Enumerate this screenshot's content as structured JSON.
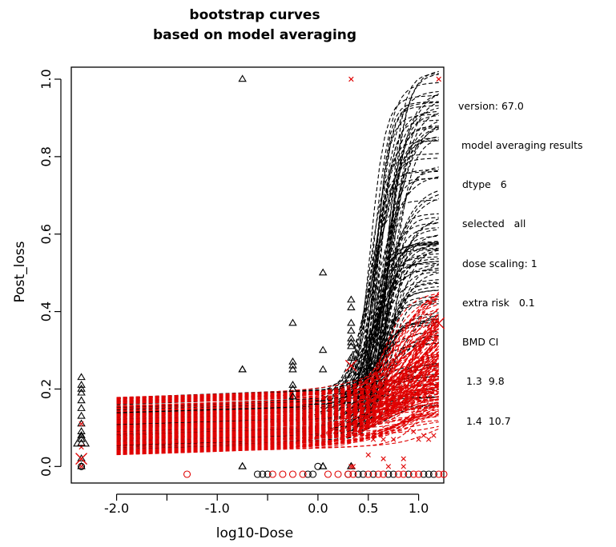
{
  "chart_data": {
    "type": "line",
    "title": [
      "bootstrap curves",
      "based on model averaging"
    ],
    "xlabel": "log10-Dose",
    "ylabel": "Post_loss",
    "xlim": [
      -2.45,
      1.25
    ],
    "ylim": [
      -0.02,
      1.0
    ],
    "x_ticks": [
      -2.0,
      -1.5,
      -1.0,
      -0.5,
      0.0,
      0.5,
      1.0
    ],
    "x_tick_labels": [
      "-2.0",
      "",
      "-1.0",
      "",
      "0.0",
      "0.5",
      "1.0"
    ],
    "y_ticks": [
      0.0,
      0.2,
      0.4,
      0.6,
      0.8,
      1.0
    ],
    "y_tick_labels": [
      "0.0",
      "0.2",
      "0.4",
      "0.6",
      "0.8",
      "1.0"
    ],
    "grid": false,
    "series": [
      {
        "style": "black dashed",
        "color": "#000000",
        "description_curves": "bootstrap curves, steep rise after x=0.3",
        "curve_x_range": [
          -2.0,
          1.2
        ],
        "base_range": [
          0.04,
          0.18
        ],
        "top_range": [
          0.12,
          1.0
        ],
        "rise_start_range": [
          0.25,
          0.5
        ]
      },
      {
        "style": "red dashed",
        "color": "#e00000",
        "curve_x_range": [
          -2.0,
          1.2
        ],
        "base_range": [
          0.03,
          0.18
        ],
        "top_range": [
          0.08,
          0.48
        ]
      }
    ],
    "points_black_triangles": {
      "color": "#000000",
      "x": [
        -2.35,
        -2.35,
        -2.35,
        -2.35,
        -2.35,
        -2.35,
        -2.35,
        -2.35,
        -2.35,
        -2.35,
        -2.35,
        -2.35,
        -2.35,
        -2.35,
        -0.75,
        -0.75,
        -0.75,
        -0.75,
        -0.75,
        -0.25,
        -0.25,
        -0.25,
        -0.25,
        -0.25,
        -0.25,
        -0.25,
        0.05,
        0.05,
        0.05,
        0.05,
        0.05,
        0.33,
        0.33,
        0.33,
        0.33,
        0.33,
        0.33,
        0.33,
        0.33,
        0.33,
        0.33
      ],
      "y": [
        0.23,
        0.21,
        0.2,
        0.19,
        0.17,
        0.15,
        0.13,
        0.11,
        0.09,
        0.08,
        0.07,
        0.06,
        0.02,
        0.0,
        1.0,
        0.25,
        0.25,
        0.0,
        0.0,
        0.37,
        0.27,
        0.26,
        0.25,
        0.21,
        0.2,
        0.18,
        0.5,
        0.3,
        0.25,
        0.0,
        0.0,
        0.43,
        0.41,
        0.37,
        0.35,
        0.33,
        0.32,
        0.31,
        0.28,
        0.0,
        0.0
      ]
    },
    "points_red_x": {
      "color": "#e00000",
      "x": [
        -2.35,
        -2.35,
        -2.35,
        0.33,
        0.33,
        0.55,
        0.55,
        0.65,
        0.7,
        0.75,
        0.85,
        0.95,
        1.0,
        1.05,
        1.1,
        1.15,
        1.2,
        0.35,
        0.5,
        0.65,
        0.85
      ],
      "y": [
        0.11,
        0.05,
        0.0,
        1.0,
        0.0,
        0.07,
        0.08,
        0.07,
        0.0,
        0.07,
        0.0,
        0.09,
        0.07,
        0.08,
        0.07,
        0.08,
        1.0,
        0.0,
        0.03,
        0.02,
        0.02
      ]
    },
    "points_black_circles": {
      "color": "#000000",
      "x": [
        -2.35,
        -0.6,
        -0.55,
        -0.5,
        -0.1,
        -0.05,
        0.0,
        0.3,
        0.4,
        0.45,
        0.55,
        0.7,
        0.75,
        0.9,
        1.05,
        1.1,
        1.15
      ],
      "y": [
        0.0,
        -0.02,
        -0.02,
        -0.02,
        -0.02,
        -0.02,
        0.0,
        -0.02,
        -0.02,
        -0.02,
        -0.02,
        -0.02,
        -0.02,
        -0.02,
        -0.02,
        -0.02,
        -0.02
      ]
    },
    "points_red_circles": {
      "color": "#e00000",
      "x": [
        -1.3,
        -0.45,
        -0.35,
        -0.25,
        -0.15,
        0.1,
        0.2,
        0.3,
        0.35,
        0.5,
        0.6,
        0.65,
        0.8,
        0.85,
        0.95,
        1.0,
        1.2,
        1.25
      ],
      "y": [
        -0.02,
        -0.02,
        -0.02,
        -0.02,
        -0.02,
        -0.02,
        -0.02,
        -0.02,
        -0.02,
        -0.02,
        -0.02,
        -0.02,
        -0.02,
        -0.02,
        -0.02,
        -0.02,
        -0.02,
        -0.02
      ]
    },
    "model_average_markers_big_x": {
      "color": "#e00000",
      "x": [
        -2.35,
        0.33,
        1.2
      ],
      "y": [
        0.02,
        0.26,
        0.37
      ]
    },
    "model_average_markers_big_triangle": {
      "color": "#000000",
      "x": [
        -2.35
      ],
      "y": [
        0.065
      ]
    },
    "colors": {
      "black_series": "#000000",
      "red_series": "#e00000"
    }
  },
  "legend": {
    "lines": [
      "version: 67.0",
      "model averaging results",
      "dtype   6",
      "selected   all",
      "dose scaling: 1",
      "extra risk   0.1",
      "BMD CI",
      "1.3  9.8",
      "1.4  10.7"
    ]
  }
}
